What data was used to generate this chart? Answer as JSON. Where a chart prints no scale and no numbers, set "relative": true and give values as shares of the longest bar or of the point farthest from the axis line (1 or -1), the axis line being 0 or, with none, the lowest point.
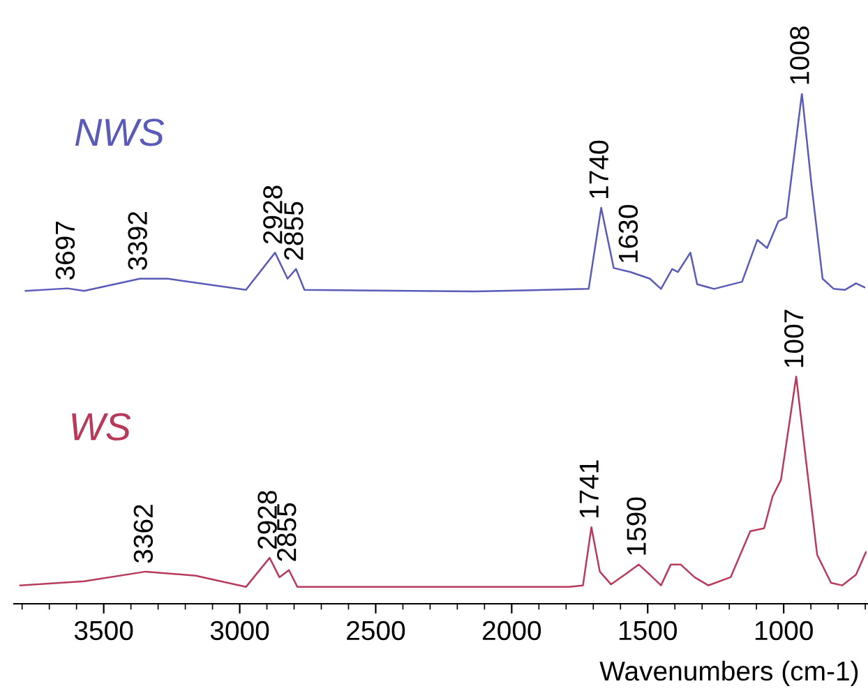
{
  "chart_data": {
    "type": "line",
    "relative": true,
    "xlabel": "Wavenumbers (cm-1)",
    "xlim": [
      3830,
      690
    ],
    "xticks": [
      {
        "value": 3800,
        "label": null
      },
      {
        "value": 3700,
        "label": null
      },
      {
        "value": 3600,
        "label": null
      },
      3500,
      {
        "value": 3400,
        "label": null
      },
      {
        "value": 3300,
        "label": null
      },
      {
        "value": 3200,
        "label": null
      },
      {
        "value": 3100,
        "label": null
      },
      3000,
      {
        "value": 2900,
        "label": null
      },
      {
        "value": 2800,
        "label": null
      },
      {
        "value": 2700,
        "label": null
      },
      {
        "value": 2600,
        "label": null
      },
      2500,
      {
        "value": 2400,
        "label": null
      },
      {
        "value": 2300,
        "label": null
      },
      {
        "value": 2200,
        "label": null
      },
      {
        "value": 2100,
        "label": null
      },
      2000,
      {
        "value": 1900,
        "label": null
      },
      {
        "value": 1800,
        "label": null
      },
      {
        "value": 1700,
        "label": null
      },
      {
        "value": 1600,
        "label": null
      },
      1500,
      {
        "value": 1400,
        "label": null
      },
      {
        "value": 1300,
        "label": null
      },
      {
        "value": 1200,
        "label": null
      },
      {
        "value": 1100,
        "label": null
      },
      1000,
      {
        "value": 900,
        "label": null
      },
      {
        "value": 800,
        "label": null
      },
      {
        "value": 700,
        "label": null
      }
    ],
    "grid": false,
    "legend": false,
    "marker": "none",
    "line_style": "solid",
    "series": [
      {
        "name": "NWS",
        "color": "#5a5ab8",
        "x": [
          3787,
          3633,
          3572,
          3367,
          3264,
          2977,
          2870,
          2824,
          2793,
          2762,
          2137,
          1717,
          1671,
          1625,
          1563,
          1492,
          1451,
          1410,
          1389,
          1343,
          1318,
          1256,
          1153,
          1097,
          1061,
          1020,
          990,
          933,
          898,
          857,
          816,
          775,
          734,
          703
        ],
        "values": [
          0.613,
          0.618,
          0.613,
          0.637,
          0.637,
          0.615,
          0.688,
          0.637,
          0.656,
          0.615,
          0.612,
          0.617,
          0.776,
          0.658,
          0.65,
          0.637,
          0.617,
          0.656,
          0.65,
          0.688,
          0.626,
          0.617,
          0.631,
          0.713,
          0.697,
          0.749,
          0.757,
          1.0,
          0.822,
          0.637,
          0.617,
          0.615,
          0.628,
          0.62
        ]
      },
      {
        "name": "WS",
        "color": "#b83a5a",
        "x": [
          3807,
          3572,
          3346,
          3162,
          2977,
          2890,
          2854,
          2819,
          2788,
          1789,
          1738,
          1707,
          1676,
          1635,
          1584,
          1533,
          1492,
          1451,
          1415,
          1379,
          1328,
          1277,
          1195,
          1123,
          1072,
          1041,
          1010,
          954,
          918,
          877,
          826,
          785,
          734,
          698
        ],
        "values": [
          0.036,
          0.044,
          0.063,
          0.055,
          0.033,
          0.09,
          0.052,
          0.066,
          0.033,
          0.033,
          0.036,
          0.15,
          0.063,
          0.038,
          0.057,
          0.077,
          0.057,
          0.036,
          0.077,
          0.077,
          0.052,
          0.036,
          0.052,
          0.142,
          0.148,
          0.21,
          0.243,
          0.445,
          0.281,
          0.096,
          0.041,
          0.036,
          0.057,
          0.101
        ]
      }
    ],
    "annotations": [
      {
        "text": "3697",
        "x": 3633,
        "y": 0.618
      },
      {
        "text": "3392",
        "x": 3367,
        "y": 0.637
      },
      {
        "text": "2928",
        "x": 2870,
        "y": 0.688
      },
      {
        "text": "2855",
        "x": 2793,
        "y": 0.656
      },
      {
        "text": "1740",
        "x": 1671,
        "y": 0.776
      },
      {
        "text": "1630",
        "x": 1563,
        "y": 0.65
      },
      {
        "text": "1008",
        "x": 933,
        "y": 1.0
      },
      {
        "text": "3362",
        "x": 3346,
        "y": 0.063
      },
      {
        "text": "2928",
        "x": 2890,
        "y": 0.09
      },
      {
        "text": "2855",
        "x": 2819,
        "y": 0.066
      },
      {
        "text": "1741",
        "x": 1707,
        "y": 0.15
      },
      {
        "text": "1590",
        "x": 1533,
        "y": 0.077
      },
      {
        "text": "1007",
        "x": 954,
        "y": 0.445
      }
    ]
  }
}
